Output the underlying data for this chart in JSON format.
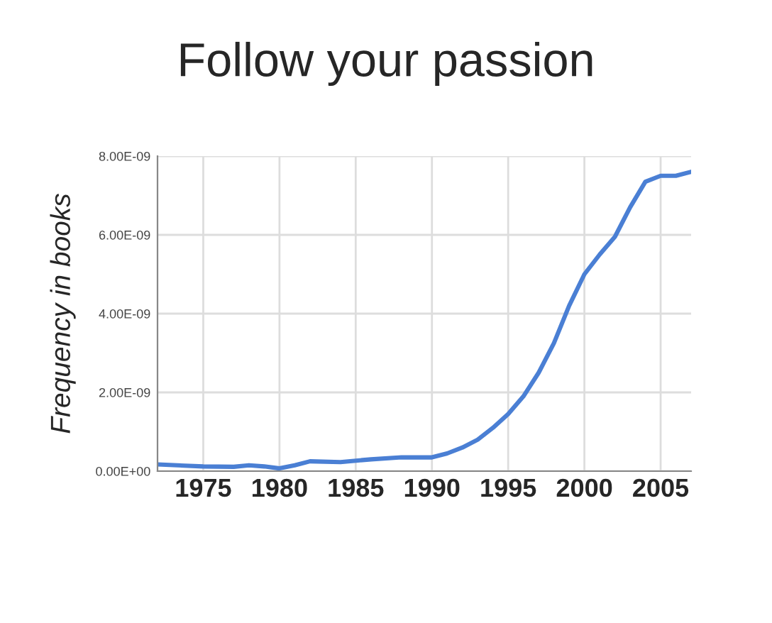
{
  "chart_data": {
    "type": "line",
    "title": "Follow your passion",
    "ylabel": "Frequency in books",
    "x": [
      1972,
      1975,
      1977,
      1978,
      1979,
      1980,
      1981,
      1982,
      1984,
      1986,
      1988,
      1990,
      1991,
      1992,
      1993,
      1994,
      1995,
      1996,
      1997,
      1998,
      1999,
      2000,
      2001,
      2002,
      2003,
      2004,
      2005,
      2006,
      2007
    ],
    "series": [
      {
        "color": "#4a7fd4",
        "values": [
          1.7e-10,
          1.2e-10,
          1.1e-10,
          1.5e-10,
          1.2e-10,
          7e-11,
          1.5e-10,
          2.5e-10,
          2.3e-10,
          3e-10,
          3.5e-10,
          3.5e-10,
          4.5e-10,
          6e-10,
          8e-10,
          1.1e-09,
          1.45e-09,
          1.9e-09,
          2.5e-09,
          3.25e-09,
          4.2e-09,
          5e-09,
          5.5e-09,
          5.95e-09,
          6.7e-09,
          7.35e-09,
          7.5e-09,
          7.5e-09,
          7.6e-09
        ]
      }
    ],
    "xlim": [
      1972,
      2007
    ],
    "xticks": [
      1975,
      1980,
      1985,
      1990,
      1995,
      2000,
      2005
    ],
    "ylim": [
      0,
      8e-09
    ],
    "yticks": [
      {
        "value": 0,
        "label": "0.00E+00"
      },
      {
        "value": 2e-09,
        "label": "2.00E-09"
      },
      {
        "value": 4e-09,
        "label": "4.00E-09"
      },
      {
        "value": 6e-09,
        "label": "6.00E-09"
      },
      {
        "value": 8e-09,
        "label": "8.00E-09"
      }
    ],
    "grid": true
  }
}
